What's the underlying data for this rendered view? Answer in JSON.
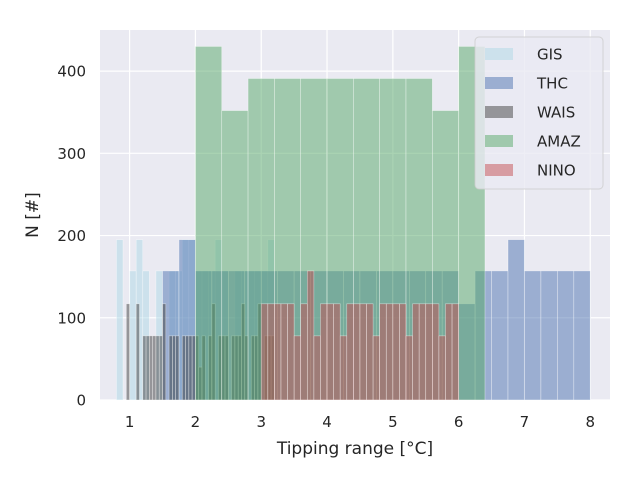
{
  "chart_data": {
    "type": "histogram",
    "title": "",
    "xlabel": "Tipping range [°C]",
    "ylabel": "N [#]",
    "xlim": [
      0.55,
      8.3
    ],
    "ylim": [
      0,
      450
    ],
    "xticks": [
      1,
      2,
      3,
      4,
      5,
      6,
      7,
      8
    ],
    "yticks": [
      0,
      100,
      200,
      300,
      400
    ],
    "grid": true,
    "legend_position": "top-right",
    "colors": {
      "background": "#eaeaf2",
      "grid": "#ffffff",
      "GIS": "#add8e6",
      "THC": "#4c72b0",
      "WAIS": "#404040",
      "AMAZ": "#55a868",
      "NINO": "#c44e52"
    },
    "series": [
      {
        "name": "GIS",
        "bin_start": 0.8,
        "bin_width": 0.1,
        "values": [
          195,
          0,
          157,
          195,
          157,
          0,
          157,
          0,
          157,
          157,
          195,
          195,
          157,
          157,
          157,
          195,
          157,
          0,
          157,
          157,
          157,
          157,
          157,
          195
        ]
      },
      {
        "name": "THC",
        "bin_start": 1.0,
        "bin_width": 0.25,
        "values": [
          0,
          0,
          157,
          195,
          157,
          157,
          157,
          157,
          157,
          157,
          157,
          157,
          157,
          157,
          157,
          157,
          157,
          157,
          157,
          157,
          117,
          157,
          157,
          195,
          157,
          157,
          157,
          157
        ]
      },
      {
        "name": "WAIS",
        "bin_start": 0.95,
        "bin_width": 0.05,
        "values": [
          117,
          0,
          0,
          117,
          0,
          78,
          78,
          78,
          78,
          78,
          78,
          117,
          0,
          78,
          78,
          78,
          0,
          78,
          78,
          78,
          78,
          78,
          40,
          78,
          0,
          78,
          117,
          0,
          78,
          78,
          78,
          0,
          78,
          78,
          78,
          117,
          78,
          0,
          78,
          78,
          117,
          0,
          78,
          78,
          78
        ]
      },
      {
        "name": "AMAZ",
        "bin_start": 2.0,
        "bin_width": 0.4,
        "values": [
          430,
          352,
          391,
          391,
          391,
          391,
          391,
          391,
          391,
          352,
          430
        ]
      },
      {
        "name": "NINO",
        "bin_start": 3.0,
        "bin_width": 0.1,
        "values": [
          117,
          117,
          117,
          117,
          117,
          78,
          117,
          157,
          78,
          117,
          117,
          117,
          78,
          117,
          117,
          117,
          117,
          78,
          117,
          117,
          117,
          117,
          78,
          117,
          117,
          117,
          117,
          78,
          117,
          117
        ]
      }
    ]
  }
}
